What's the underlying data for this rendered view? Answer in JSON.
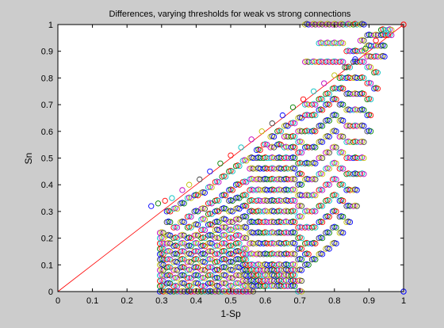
{
  "chart_data": {
    "type": "scatter",
    "title": "Differences, varying thresholds for weak vs strong connections",
    "xlabel": "1-Sp",
    "ylabel": "Sn",
    "xlim": [
      0,
      1
    ],
    "ylim": [
      0,
      1
    ],
    "xticks": [
      "0",
      "0.1",
      "0.2",
      "0.3",
      "0.4",
      "0.5",
      "0.6",
      "0.7",
      "0.8",
      "0.9",
      "1"
    ],
    "yticks": [
      "0",
      "0.1",
      "0.2",
      "0.3",
      "0.4",
      "0.5",
      "0.6",
      "0.7",
      "0.8",
      "0.9",
      "1"
    ],
    "grid": false,
    "legend": "none",
    "marker": "open circle",
    "reference_line": {
      "from": [
        0,
        0
      ],
      "to": [
        1,
        1
      ],
      "color": "#ff0000"
    },
    "series_colors": [
      "#0000ff",
      "#008000",
      "#ff0000",
      "#00bfbf",
      "#bf00bf",
      "#bfbf00",
      "#404040"
    ],
    "columns": [
      {
        "x": 0.3,
        "y": [
          0.0,
          0.02,
          0.04,
          0.06,
          0.08,
          0.1,
          0.12,
          0.14,
          0.16,
          0.18,
          0.2,
          0.22
        ]
      },
      {
        "x": 0.32,
        "y": [
          0.0,
          0.03,
          0.06,
          0.09,
          0.12,
          0.15,
          0.18,
          0.21,
          0.26,
          0.3
        ]
      },
      {
        "x": 0.34,
        "y": [
          0.0,
          0.02,
          0.05,
          0.08,
          0.11,
          0.14,
          0.17,
          0.2,
          0.24,
          0.31
        ]
      },
      {
        "x": 0.36,
        "y": [
          0.0,
          0.03,
          0.06,
          0.09,
          0.12,
          0.15,
          0.18,
          0.21,
          0.26,
          0.33
        ]
      },
      {
        "x": 0.38,
        "y": [
          0.0,
          0.02,
          0.05,
          0.08,
          0.11,
          0.14,
          0.17,
          0.2,
          0.24,
          0.28,
          0.35
        ]
      },
      {
        "x": 0.4,
        "y": [
          0.0,
          0.03,
          0.06,
          0.09,
          0.12,
          0.15,
          0.18,
          0.21,
          0.25,
          0.3,
          0.36
        ]
      },
      {
        "x": 0.42,
        "y": [
          0.0,
          0.02,
          0.05,
          0.08,
          0.11,
          0.14,
          0.17,
          0.2,
          0.23,
          0.27,
          0.31,
          0.37
        ]
      },
      {
        "x": 0.44,
        "y": [
          0.0,
          0.03,
          0.06,
          0.09,
          0.12,
          0.15,
          0.18,
          0.21,
          0.25,
          0.29,
          0.33,
          0.39
        ]
      },
      {
        "x": 0.46,
        "y": [
          0.0,
          0.02,
          0.05,
          0.08,
          0.11,
          0.14,
          0.17,
          0.2,
          0.23,
          0.26,
          0.3,
          0.34,
          0.41
        ]
      },
      {
        "x": 0.48,
        "y": [
          0.0,
          0.03,
          0.06,
          0.09,
          0.12,
          0.15,
          0.18,
          0.21,
          0.24,
          0.27,
          0.31,
          0.36,
          0.43
        ]
      },
      {
        "x": 0.5,
        "y": [
          0.0,
          0.02,
          0.05,
          0.08,
          0.11,
          0.14,
          0.17,
          0.2,
          0.23,
          0.26,
          0.3,
          0.34,
          0.38,
          0.45
        ]
      },
      {
        "x": 0.52,
        "y": [
          0.0,
          0.03,
          0.06,
          0.09,
          0.12,
          0.15,
          0.18,
          0.21,
          0.24,
          0.27,
          0.31,
          0.35,
          0.4,
          0.47
        ]
      },
      {
        "x": 0.54,
        "y": [
          0.0,
          0.02,
          0.04,
          0.06,
          0.08,
          0.1,
          0.12,
          0.14,
          0.16,
          0.2,
          0.24,
          0.28,
          0.32,
          0.36,
          0.41,
          0.49
        ]
      },
      {
        "x": 0.56,
        "y": [
          0.0,
          0.02,
          0.04,
          0.06,
          0.08,
          0.1,
          0.14,
          0.18,
          0.22,
          0.26,
          0.3,
          0.34,
          0.38,
          0.42,
          0.46,
          0.5
        ]
      },
      {
        "x": 0.58,
        "y": [
          0.02,
          0.04,
          0.06,
          0.08,
          0.1,
          0.14,
          0.18,
          0.22,
          0.26,
          0.3,
          0.34,
          0.38,
          0.42,
          0.46,
          0.5,
          0.53
        ]
      },
      {
        "x": 0.6,
        "y": [
          0.02,
          0.04,
          0.06,
          0.08,
          0.1,
          0.14,
          0.18,
          0.22,
          0.26,
          0.3,
          0.34,
          0.38,
          0.42,
          0.46,
          0.5,
          0.55
        ]
      },
      {
        "x": 0.62,
        "y": [
          0.02,
          0.04,
          0.06,
          0.08,
          0.1,
          0.14,
          0.18,
          0.22,
          0.26,
          0.3,
          0.34,
          0.38,
          0.42,
          0.46,
          0.5,
          0.54,
          0.58
        ]
      },
      {
        "x": 0.64,
        "y": [
          0.02,
          0.04,
          0.06,
          0.08,
          0.1,
          0.14,
          0.18,
          0.22,
          0.26,
          0.3,
          0.34,
          0.38,
          0.42,
          0.46,
          0.5,
          0.55,
          0.6
        ]
      },
      {
        "x": 0.66,
        "y": [
          0.02,
          0.04,
          0.06,
          0.08,
          0.1,
          0.14,
          0.18,
          0.22,
          0.26,
          0.3,
          0.34,
          0.38,
          0.42,
          0.46,
          0.5,
          0.54,
          0.58,
          0.62
        ]
      },
      {
        "x": 0.68,
        "y": [
          0.02,
          0.04,
          0.06,
          0.08,
          0.1,
          0.14,
          0.18,
          0.22,
          0.26,
          0.3,
          0.34,
          0.38,
          0.42,
          0.46,
          0.5,
          0.54,
          0.58,
          0.63
        ]
      },
      {
        "x": 0.7,
        "y": [
          0.0,
          0.04,
          0.08,
          0.12,
          0.16,
          0.2,
          0.24,
          0.28,
          0.32,
          0.36,
          0.4,
          0.44,
          0.48,
          0.52,
          0.56,
          0.6,
          0.65
        ]
      },
      {
        "x": 0.72,
        "y": [
          0.1,
          0.14,
          0.18,
          0.24,
          0.3,
          0.36,
          0.42,
          0.48,
          0.54,
          0.6,
          0.66,
          0.7,
          0.86,
          1.0
        ]
      },
      {
        "x": 0.74,
        "y": [
          0.12,
          0.18,
          0.24,
          0.3,
          0.36,
          0.42,
          0.48,
          0.54,
          0.6,
          0.66,
          0.7,
          0.86,
          1.0
        ]
      },
      {
        "x": 0.76,
        "y": [
          0.14,
          0.2,
          0.26,
          0.32,
          0.38,
          0.44,
          0.5,
          0.56,
          0.62,
          0.68,
          0.72,
          0.86,
          0.93,
          1.0
        ]
      },
      {
        "x": 0.78,
        "y": [
          0.16,
          0.22,
          0.28,
          0.34,
          0.4,
          0.46,
          0.52,
          0.58,
          0.64,
          0.7,
          0.74,
          0.86,
          0.93,
          1.0
        ]
      },
      {
        "x": 0.8,
        "y": [
          0.18,
          0.24,
          0.3,
          0.36,
          0.42,
          0.48,
          0.54,
          0.6,
          0.66,
          0.72,
          0.76,
          0.86,
          0.93,
          1.0
        ]
      },
      {
        "x": 0.82,
        "y": [
          0.22,
          0.28,
          0.34,
          0.4,
          0.46,
          0.52,
          0.58,
          0.64,
          0.7,
          0.76,
          0.8,
          0.86,
          0.93,
          1.0
        ]
      },
      {
        "x": 0.84,
        "y": [
          0.26,
          0.32,
          0.38,
          0.44,
          0.5,
          0.56,
          0.62,
          0.68,
          0.74,
          0.8,
          0.84,
          0.9,
          1.0
        ]
      },
      {
        "x": 0.86,
        "y": [
          0.32,
          0.38,
          0.44,
          0.5,
          0.56,
          0.62,
          0.68,
          0.74,
          0.8,
          0.86,
          0.9,
          1.0
        ]
      },
      {
        "x": 0.88,
        "y": [
          0.44,
          0.5,
          0.56,
          0.62,
          0.68,
          0.74,
          0.8,
          0.86,
          0.9,
          0.94,
          1.0
        ]
      },
      {
        "x": 0.9,
        "y": [
          0.6,
          0.66,
          0.72,
          0.78,
          0.84,
          0.88,
          0.92,
          0.96
        ]
      },
      {
        "x": 0.92,
        "y": [
          0.76,
          0.82,
          0.88,
          0.92,
          0.96
        ]
      },
      {
        "x": 0.94,
        "y": [
          0.88,
          0.92,
          0.96,
          0.98
        ]
      },
      {
        "x": 0.96,
        "y": [
          0.96,
          0.98
        ]
      }
    ],
    "diagonal_points": [
      {
        "x": 0.27,
        "y": 0.32
      },
      {
        "x": 0.29,
        "y": 0.33
      },
      {
        "x": 0.31,
        "y": 0.34
      },
      {
        "x": 0.33,
        "y": 0.35
      },
      {
        "x": 0.36,
        "y": 0.38
      },
      {
        "x": 0.38,
        "y": 0.4
      },
      {
        "x": 0.41,
        "y": 0.42
      },
      {
        "x": 0.44,
        "y": 0.45
      },
      {
        "x": 0.47,
        "y": 0.48
      },
      {
        "x": 0.5,
        "y": 0.51
      },
      {
        "x": 0.53,
        "y": 0.54
      },
      {
        "x": 0.56,
        "y": 0.57
      },
      {
        "x": 0.59,
        "y": 0.6
      },
      {
        "x": 0.62,
        "y": 0.63
      },
      {
        "x": 0.65,
        "y": 0.66
      },
      {
        "x": 0.68,
        "y": 0.69
      },
      {
        "x": 0.71,
        "y": 0.72
      },
      {
        "x": 0.74,
        "y": 0.75
      },
      {
        "x": 0.77,
        "y": 0.78
      },
      {
        "x": 0.8,
        "y": 0.81
      },
      {
        "x": 0.83,
        "y": 0.84
      },
      {
        "x": 0.86,
        "y": 0.87
      },
      {
        "x": 0.89,
        "y": 0.91
      },
      {
        "x": 0.92,
        "y": 0.94
      },
      {
        "x": 0.95,
        "y": 0.97
      }
    ],
    "outliers": [
      {
        "x": 1.0,
        "y": 0.0,
        "color": "#0000ff"
      },
      {
        "x": 1.0,
        "y": 1.0,
        "color": "#ff0000"
      }
    ]
  }
}
